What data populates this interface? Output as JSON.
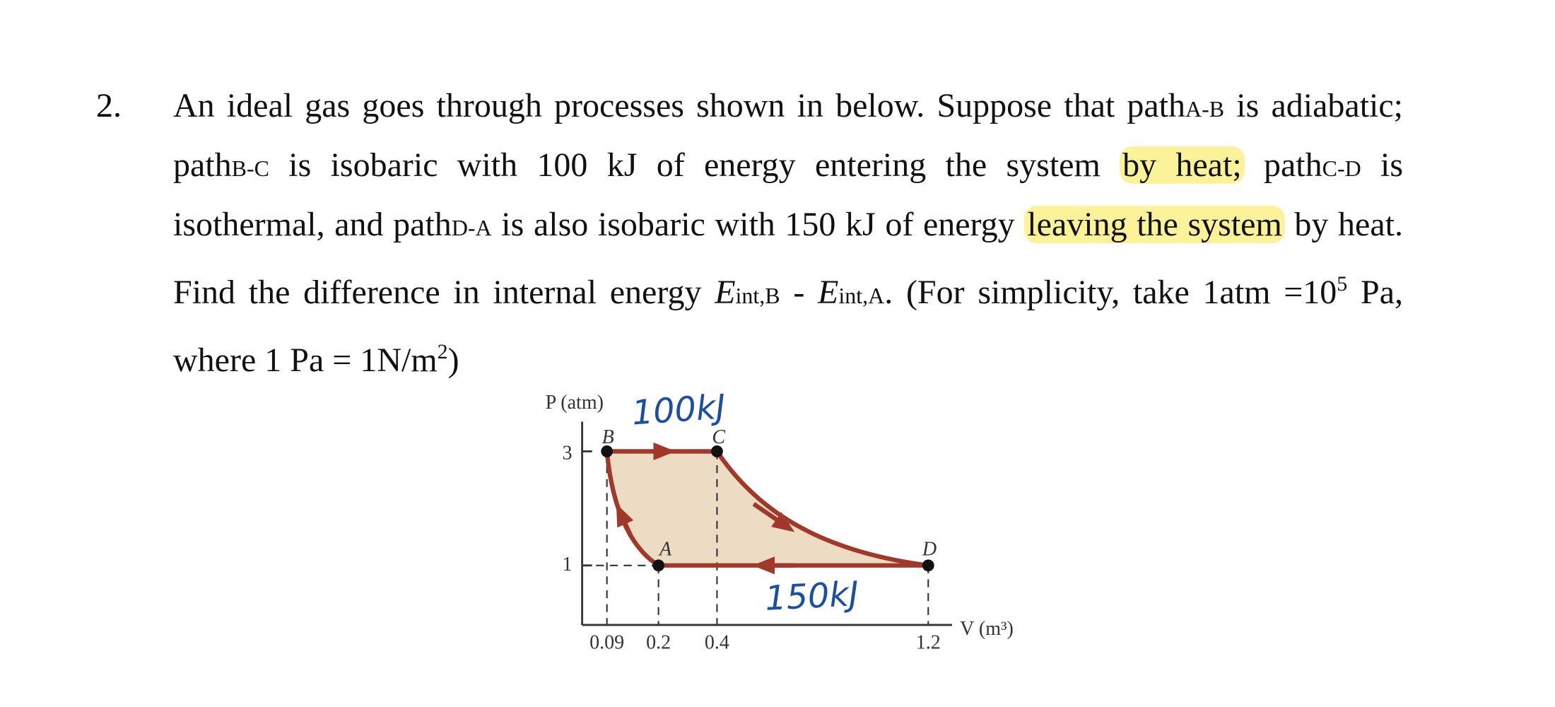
{
  "problem": {
    "number": "2.",
    "text": [
      "An ideal gas goes through processes shown in below. Suppose that path",
      "A-B",
      " is adiabatic; path",
      "B-C",
      " is isobaric with 100 kJ of energy entering the system ",
      "by heat;",
      " path",
      "C-D",
      " is isothermal, and path",
      "D-A",
      " is also isobaric with 150 kJ of energy ",
      "leaving the system",
      " by heat. Find the difference in internal energy ",
      "E",
      "int,B",
      " - ",
      "E",
      "int,A",
      ". (For simplicity, take 1atm =10",
      "5",
      " Pa, where 1 Pa = 1N/m",
      "2",
      ")"
    ]
  },
  "figure": {
    "y_axis_label": "P (atm)",
    "x_axis_label": "V (m³)",
    "y_tick_labels": [
      "3",
      "1"
    ],
    "x_tick_labels": [
      "0.09",
      "0.2",
      "0.4",
      "1.2"
    ],
    "point_labels": [
      "B",
      "C",
      "A",
      "D"
    ],
    "annotations": [
      "100kJ",
      "150kJ"
    ]
  }
}
